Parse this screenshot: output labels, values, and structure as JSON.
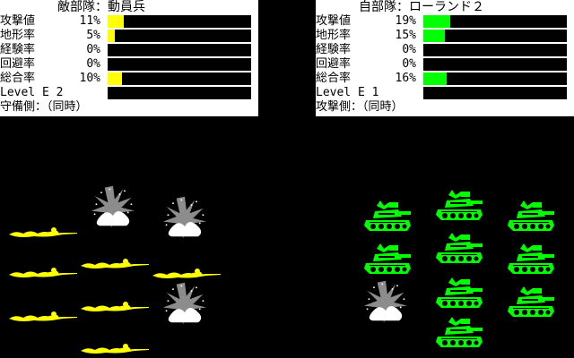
{
  "enemy": {
    "title": "敵部隊：動員兵",
    "fill_color": "#ffff00",
    "stats": [
      {
        "label": "攻撃値",
        "value": "11%",
        "fill": 0.11
      },
      {
        "label": "地形率",
        "value": "5%",
        "fill": 0.05
      },
      {
        "label": "経験率",
        "value": "0%",
        "fill": 0
      },
      {
        "label": "回避率",
        "value": "0%",
        "fill": 0
      },
      {
        "label": "総合率",
        "value": "10%",
        "fill": 0.1
      }
    ],
    "level": "Level E 2",
    "side": "守備側：（同時）"
  },
  "ally": {
    "title": "自部隊：ローランド２",
    "fill_color": "#00ff00",
    "stats": [
      {
        "label": "攻撃値",
        "value": "19%",
        "fill": 0.19
      },
      {
        "label": "地形率",
        "value": "15%",
        "fill": 0.15
      },
      {
        "label": "経験率",
        "value": "0%",
        "fill": 0
      },
      {
        "label": "回避率",
        "value": "0%",
        "fill": 0
      },
      {
        "label": "総合率",
        "value": "16%",
        "fill": 0.16
      }
    ],
    "level": "Level E 1",
    "side": "攻撃側：（同時）"
  },
  "colors": {
    "infantry": "#ffff00",
    "tank": "#00ff00",
    "explosion": "#ffffff",
    "background": "#000000"
  }
}
